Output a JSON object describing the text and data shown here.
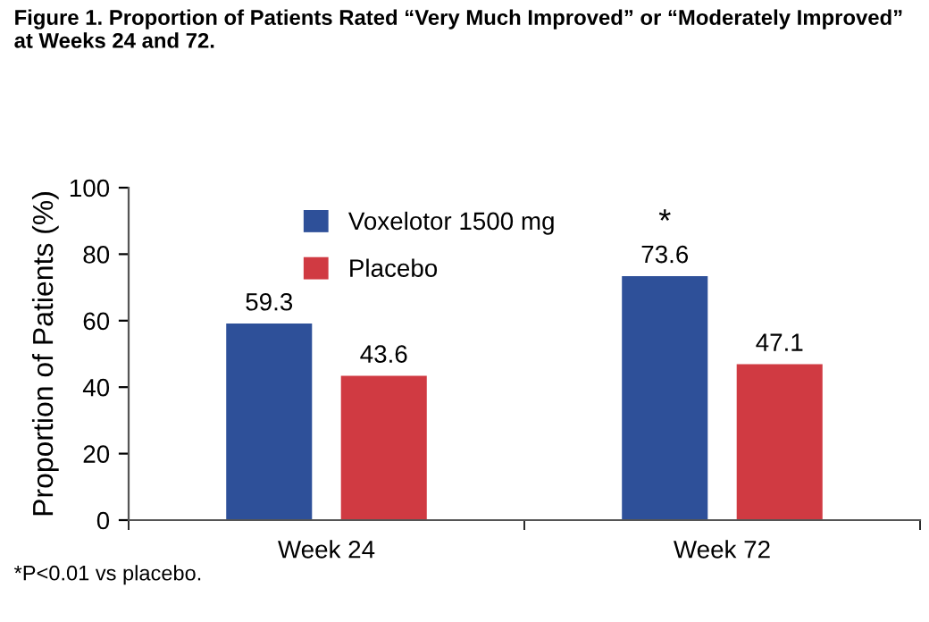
{
  "chart_data": {
    "type": "bar",
    "title": "Figure 1. Proportion of Patients Rated “Very Much Improved” or “Moderately Improved” at Weeks 24 and 72.",
    "ylabel": "Proportion of Patients (%)",
    "categories": [
      "Week 24",
      "Week 72"
    ],
    "series": [
      {
        "name": "Voxelotor 1500 mg",
        "color": "#2e5099",
        "values": [
          59.3,
          73.6
        ]
      },
      {
        "name": "Placebo",
        "color": "#d03a42",
        "values": [
          43.6,
          47.1
        ]
      }
    ],
    "ylim": [
      0,
      100
    ],
    "yticks": [
      0,
      20,
      40,
      60,
      80,
      100
    ],
    "grid": false,
    "legend": "top",
    "data_labels": true,
    "annotations": [
      "*",
      "*P<0.01 vs placebo."
    ]
  }
}
